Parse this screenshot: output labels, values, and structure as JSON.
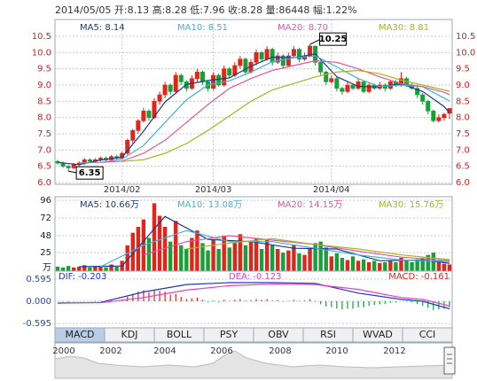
{
  "header": "2014/05/05 开:8.13 高:8.28 低:7.96 收:8.28 量:86448 幅:1.22%",
  "chart_data": [
    {
      "type": "candlestick",
      "up_color": "#e0251b",
      "down_color": "#17a03a",
      "tick_color": "#d42020",
      "grid": true,
      "right_axis": true,
      "ylim": [
        6,
        10.5
      ],
      "yticks": [
        {
          "value": 6,
          "label": "6.0"
        },
        6.5,
        {
          "value": 7,
          "label": "7.0"
        },
        7.5,
        {
          "value": 8,
          "label": "8.0"
        },
        8.5,
        {
          "value": 9,
          "label": "9.0"
        },
        9.5,
        {
          "value": 10,
          "label": "10.0"
        },
        10.5
      ],
      "xticks": [
        {
          "value": 12,
          "label": "2014/02"
        },
        {
          "value": 29,
          "label": "2014/03"
        },
        {
          "value": 51,
          "label": "2014/04"
        }
      ],
      "candles": [
        [
          6.65,
          6.7,
          6.55,
          6.6
        ],
        [
          6.6,
          6.65,
          6.45,
          6.5
        ],
        [
          6.5,
          6.55,
          6.35,
          6.45
        ],
        [
          6.45,
          6.6,
          6.4,
          6.55
        ],
        [
          6.55,
          6.65,
          6.5,
          6.6
        ],
        [
          6.6,
          6.75,
          6.55,
          6.7
        ],
        [
          6.7,
          6.75,
          6.6,
          6.65
        ],
        [
          6.65,
          6.75,
          6.6,
          6.7
        ],
        [
          6.7,
          6.8,
          6.65,
          6.75
        ],
        [
          6.75,
          6.8,
          6.65,
          6.7
        ],
        [
          6.7,
          6.85,
          6.65,
          6.8
        ],
        [
          6.8,
          6.85,
          6.7,
          6.75
        ],
        [
          6.75,
          6.95,
          6.7,
          6.9
        ],
        [
          6.9,
          7.35,
          6.85,
          7.3
        ],
        [
          7.3,
          7.65,
          7.2,
          7.6
        ],
        [
          7.6,
          7.95,
          7.5,
          7.9
        ],
        [
          7.9,
          8.3,
          7.85,
          8.2
        ],
        [
          8.2,
          8.25,
          7.9,
          8.0
        ],
        [
          8.0,
          8.6,
          7.95,
          8.5
        ],
        [
          8.5,
          8.8,
          8.4,
          8.7
        ],
        [
          8.7,
          9.1,
          8.6,
          9.0
        ],
        [
          9.0,
          9.05,
          8.7,
          8.8
        ],
        [
          8.8,
          9.4,
          8.75,
          9.3
        ],
        [
          9.3,
          9.35,
          9.0,
          9.1
        ],
        [
          9.1,
          9.15,
          8.8,
          8.9
        ],
        [
          8.9,
          9.3,
          8.85,
          9.2
        ],
        [
          9.2,
          9.5,
          9.1,
          9.4
        ],
        [
          9.4,
          9.45,
          9.0,
          9.1
        ],
        [
          9.1,
          9.15,
          8.8,
          8.9
        ],
        [
          8.9,
          9.4,
          8.85,
          9.3
        ],
        [
          9.3,
          9.35,
          8.95,
          9.0
        ],
        [
          9.0,
          9.6,
          8.95,
          9.5
        ],
        [
          9.5,
          9.55,
          9.2,
          9.3
        ],
        [
          9.3,
          9.7,
          9.25,
          9.6
        ],
        [
          9.6,
          9.9,
          9.5,
          9.8
        ],
        [
          9.8,
          9.85,
          9.3,
          9.4
        ],
        [
          9.4,
          9.8,
          9.35,
          9.7
        ],
        [
          9.7,
          10.1,
          9.6,
          10.0
        ],
        [
          10.0,
          10.05,
          9.7,
          9.8
        ],
        [
          9.8,
          10.2,
          9.75,
          10.1
        ],
        [
          10.1,
          10.15,
          9.6,
          9.7
        ],
        [
          9.7,
          10.0,
          9.65,
          9.9
        ],
        [
          9.9,
          9.95,
          9.5,
          9.6
        ],
        [
          9.6,
          10.0,
          9.55,
          9.9
        ],
        [
          9.9,
          10.2,
          9.85,
          10.1
        ],
        [
          10.1,
          10.15,
          9.7,
          9.8
        ],
        [
          9.8,
          10.0,
          9.75,
          9.9
        ],
        [
          9.9,
          10.25,
          9.85,
          10.2
        ],
        [
          10.2,
          10.2,
          9.6,
          9.7
        ],
        [
          9.7,
          9.75,
          9.3,
          9.4
        ],
        [
          9.4,
          9.45,
          9.0,
          9.1
        ],
        [
          9.1,
          9.3,
          9.05,
          9.2
        ],
        [
          9.2,
          9.25,
          8.8,
          8.9
        ],
        [
          8.9,
          8.95,
          8.7,
          8.8
        ],
        [
          8.8,
          9.1,
          8.75,
          9.0
        ],
        [
          9.0,
          9.05,
          8.85,
          8.9
        ],
        [
          8.9,
          9.2,
          8.85,
          9.1
        ],
        [
          9.1,
          9.15,
          8.75,
          8.8
        ],
        [
          8.8,
          9.1,
          8.75,
          9.0
        ],
        [
          9.0,
          9.05,
          8.85,
          8.9
        ],
        [
          8.9,
          9.1,
          8.85,
          9.0
        ],
        [
          9.0,
          9.05,
          8.8,
          8.9
        ],
        [
          8.9,
          9.15,
          8.85,
          9.1
        ],
        [
          9.1,
          9.15,
          8.95,
          9.0
        ],
        [
          9.0,
          9.4,
          8.95,
          9.2
        ],
        [
          9.2,
          9.25,
          8.95,
          9.0
        ],
        [
          9.0,
          9.05,
          8.85,
          8.9
        ],
        [
          8.9,
          8.95,
          8.6,
          8.7
        ],
        [
          8.7,
          8.75,
          8.4,
          8.5
        ],
        [
          8.5,
          8.55,
          8.1,
          8.2
        ],
        [
          8.2,
          8.25,
          7.85,
          7.9
        ],
        [
          7.9,
          8.1,
          7.85,
          8.0
        ],
        [
          8.0,
          8.15,
          7.9,
          8.1
        ],
        [
          8.13,
          8.28,
          7.96,
          8.28
        ]
      ],
      "series": [
        {
          "name": "MA5: 8.14",
          "color": "#1b3a8c",
          "x": [
            0,
            4,
            8,
            12,
            16,
            20,
            24,
            28,
            32,
            36,
            40,
            44,
            48,
            52,
            56,
            60,
            64,
            68,
            72,
            73
          ],
          "values": [
            6.62,
            6.55,
            6.69,
            6.78,
            7.58,
            8.48,
            9.02,
            9.14,
            9.22,
            9.58,
            9.86,
            9.84,
            9.96,
            9.26,
            8.96,
            8.94,
            9.04,
            8.8,
            8.34,
            8.14
          ]
        },
        {
          "name": "MA10: 8.51",
          "color": "#3cb2de",
          "x": [
            4,
            8,
            12,
            16,
            20,
            24,
            28,
            32,
            36,
            40,
            44,
            48,
            52,
            56,
            60,
            64,
            68,
            72,
            73
          ],
          "values": [
            6.6,
            6.62,
            6.72,
            7.14,
            7.85,
            8.55,
            9.0,
            9.13,
            9.4,
            9.72,
            9.84,
            9.9,
            9.56,
            9.2,
            8.95,
            9.0,
            8.95,
            8.6,
            8.51
          ]
        },
        {
          "name": "MA20: 8.70",
          "color": "#e0589c",
          "x": [
            8,
            12,
            16,
            20,
            24,
            28,
            32,
            36,
            40,
            44,
            48,
            52,
            56,
            60,
            64,
            68,
            72,
            73
          ],
          "values": [
            6.62,
            6.66,
            6.9,
            7.3,
            7.85,
            8.4,
            8.9,
            9.2,
            9.45,
            9.6,
            9.75,
            9.7,
            9.5,
            9.25,
            9.05,
            8.95,
            8.78,
            8.7
          ]
        },
        {
          "name": "MA30: 8.81",
          "color": "#a6b422",
          "x": [
            12,
            16,
            20,
            24,
            28,
            32,
            36,
            40,
            44,
            48,
            52,
            56,
            60,
            64,
            68,
            72,
            73
          ],
          "values": [
            6.65,
            6.7,
            6.9,
            7.2,
            7.6,
            8.05,
            8.5,
            8.85,
            9.05,
            9.25,
            9.4,
            9.45,
            9.35,
            9.15,
            9.0,
            8.85,
            8.81
          ]
        }
      ],
      "annotations": [
        {
          "label": "10.25",
          "index": 47,
          "value": 10.25
        },
        {
          "label": "6.35",
          "index": 2,
          "value": 6.35
        }
      ]
    },
    {
      "type": "volume",
      "up_color": "#e0251b",
      "down_color": "#17a03a",
      "tick_color": "#222222",
      "grid": true,
      "unit": "万",
      "ylim": [
        0,
        96
      ],
      "yticks": [
        25,
        48,
        72,
        96
      ],
      "values": [
        6,
        5,
        7,
        5,
        6,
        8,
        5,
        6,
        7,
        5,
        9,
        6,
        14,
        35,
        52,
        60,
        70,
        45,
        92,
        75,
        60,
        40,
        68,
        35,
        30,
        45,
        55,
        38,
        28,
        42,
        30,
        48,
        32,
        38,
        50,
        35,
        40,
        45,
        30,
        42,
        35,
        30,
        25,
        28,
        35,
        24,
        22,
        30,
        38,
        40,
        32,
        20,
        24,
        18,
        15,
        20,
        14,
        16,
        12,
        14,
        11,
        12,
        15,
        12,
        18,
        14,
        12,
        16,
        18,
        22,
        25,
        14,
        10,
        9
      ],
      "series": [
        {
          "name": "MA5: 10.66万",
          "color": "#1b3a8c",
          "x": [
            4,
            12,
            20,
            28,
            36,
            44,
            52,
            60,
            68,
            73
          ],
          "values": [
            6,
            7,
            74,
            43,
            40,
            31,
            30,
            14,
            15,
            10.66
          ]
        },
        {
          "name": "MA10: 13.08万",
          "color": "#3cb2de",
          "x": [
            8,
            16,
            24,
            32,
            40,
            48,
            56,
            64,
            73
          ],
          "values": [
            6,
            35,
            55,
            40,
            40,
            31,
            22,
            15,
            13.08
          ]
        },
        {
          "name": "MA20: 14.15万",
          "color": "#e0589c",
          "x": [
            16,
            24,
            32,
            40,
            48,
            56,
            64,
            73
          ],
          "values": [
            22,
            40,
            48,
            42,
            36,
            27,
            19,
            14.15
          ]
        },
        {
          "name": "MA30: 15.76万",
          "color": "#a6b422",
          "x": [
            24,
            32,
            40,
            48,
            56,
            64,
            73
          ],
          "values": [
            30,
            38,
            44,
            36,
            30,
            22,
            15.76
          ]
        }
      ]
    },
    {
      "type": "macd",
      "up_color": "#e0251b",
      "down_color": "#17a03a",
      "tick_color": "#2a4aa8",
      "grid": true,
      "ylim": [
        -0.595,
        0.595
      ],
      "yticks": [
        -0.595,
        {
          "value": 0,
          "label": "0.000"
        },
        0.595
      ],
      "bar_label": "MACD: -0.161",
      "values": [
        0,
        -0.01,
        -0.02,
        -0.01,
        0,
        0.01,
        0,
        0.01,
        0.01,
        0,
        0.02,
        0.01,
        0.04,
        0.12,
        0.2,
        0.26,
        0.3,
        0.24,
        0.3,
        0.28,
        0.26,
        0.18,
        0.2,
        0.12,
        0.06,
        0.08,
        0.1,
        0.04,
        -0.02,
        0.02,
        -0.02,
        0.04,
        0.01,
        0.04,
        0.06,
        0.02,
        0.03,
        0.06,
        0.04,
        0.06,
        0.02,
        0.03,
        -0.01,
        0.01,
        0.04,
        0.01,
        0.02,
        0.06,
        -0.02,
        -0.08,
        -0.14,
        -0.16,
        -0.2,
        -0.22,
        -0.2,
        -0.2,
        -0.16,
        -0.16,
        -0.12,
        -0.1,
        -0.08,
        -0.07,
        -0.04,
        -0.03,
        0.0,
        -0.01,
        -0.03,
        -0.07,
        -0.12,
        -0.18,
        -0.24,
        -0.22,
        -0.2,
        -0.161
      ],
      "series": [
        {
          "name": "DIF: -0.203",
          "color": "#2036c0",
          "x": [
            0,
            8,
            16,
            24,
            32,
            40,
            48,
            56,
            64,
            68,
            73
          ],
          "values": [
            -0.05,
            -0.03,
            0.25,
            0.45,
            0.5,
            0.5,
            0.48,
            0.22,
            0.05,
            0,
            -0.203
          ]
        },
        {
          "name": "DEA: -0.123",
          "color": "#e040c8",
          "x": [
            0,
            8,
            16,
            24,
            32,
            40,
            48,
            56,
            64,
            68,
            73
          ],
          "values": [
            -0.04,
            -0.04,
            0.1,
            0.3,
            0.42,
            0.46,
            0.45,
            0.32,
            0.1,
            0.05,
            -0.123
          ]
        }
      ]
    }
  ],
  "tabs": [
    "MACD",
    "KDJ",
    "BOLL",
    "PSY",
    "OBV",
    "RSI",
    "WVAD",
    "CCI"
  ],
  "timeline": [
    "2000",
    "2002",
    "2004",
    "2006",
    "2008",
    "2010",
    "2012"
  ]
}
